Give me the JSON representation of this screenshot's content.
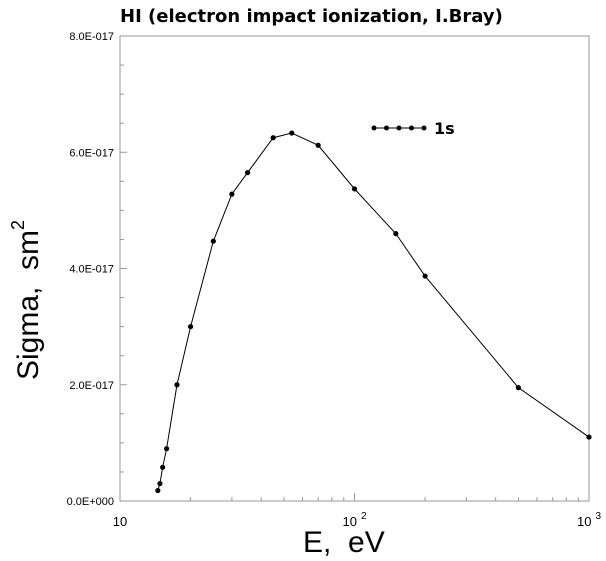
{
  "chart_data": {
    "type": "line",
    "title": "HI (electron impact ionization, I.Bray)",
    "xlabel": "E,  eV",
    "ylabel": "Sigma,  sm",
    "ylabel_superscript": "2",
    "x_scale": "log",
    "xlim": [
      10,
      1000
    ],
    "ylim": [
      0,
      8e-17
    ],
    "x_tick_labels": [
      {
        "value": 10,
        "base": "10",
        "exp": ""
      },
      {
        "value": 100,
        "base": "10",
        "exp": "2"
      },
      {
        "value": 1000,
        "base": "10",
        "exp": "3"
      }
    ],
    "y_tick_labels": [
      {
        "value": 0,
        "label": "0.0E+000"
      },
      {
        "value": 2e-17,
        "label": "2.0E-017"
      },
      {
        "value": 4e-17,
        "label": "4.0E-017"
      },
      {
        "value": 6e-17,
        "label": "6.0E-017"
      },
      {
        "value": 8e-17,
        "label": "8.0E-017"
      }
    ],
    "grid": false,
    "legend_position": "top-right",
    "series": [
      {
        "name": "1s",
        "color": "#000000",
        "x": [
          14.5,
          14.8,
          15.2,
          15.8,
          17.5,
          20,
          25,
          30,
          35,
          45,
          54,
          70,
          100,
          150,
          200,
          500,
          1000
        ],
        "y": [
          1.8e-18,
          3e-18,
          5.8e-18,
          9e-18,
          2e-17,
          3e-17,
          4.47e-17,
          5.28e-17,
          5.65e-17,
          6.25e-17,
          6.33e-17,
          6.12e-17,
          5.37e-17,
          4.6e-17,
          3.87e-17,
          1.95e-17,
          1.1e-17
        ]
      }
    ]
  }
}
